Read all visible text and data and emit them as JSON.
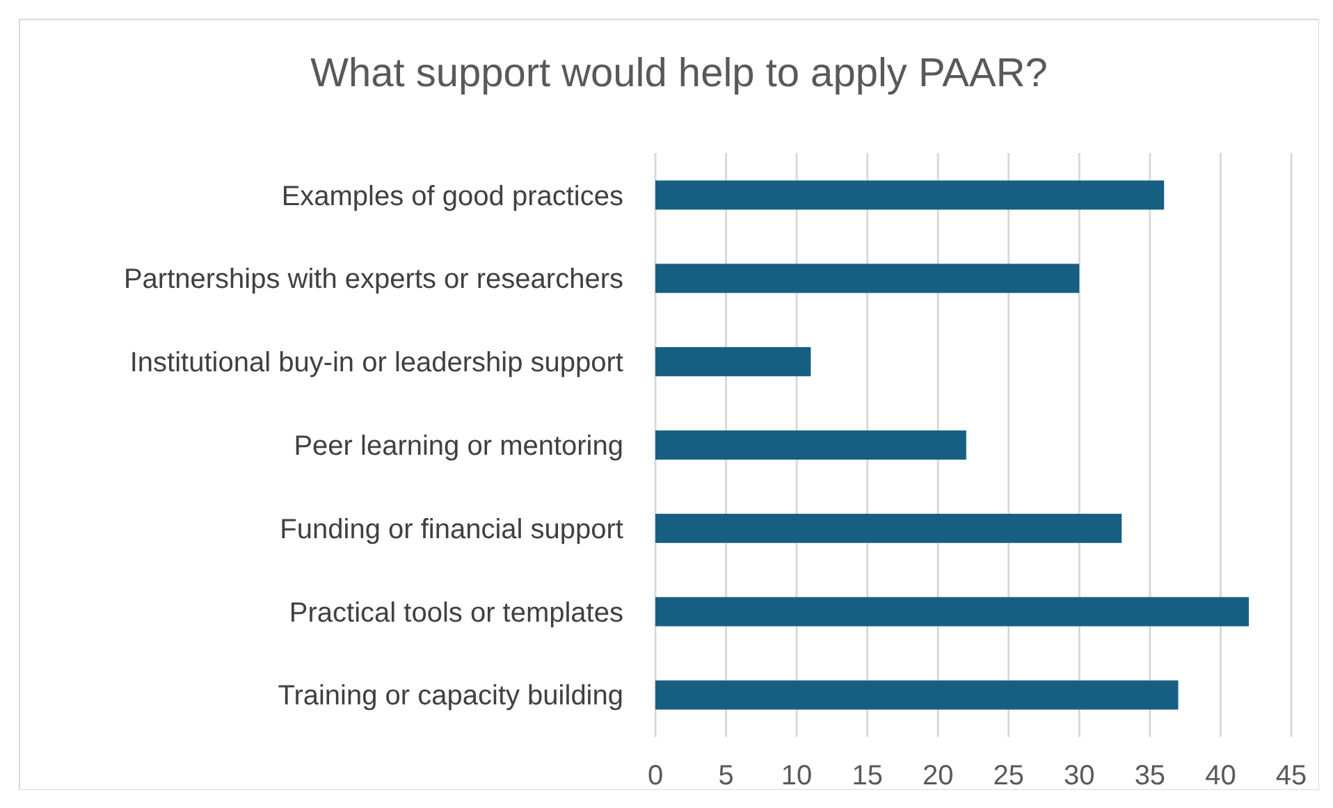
{
  "chart_data": {
    "type": "bar",
    "orientation": "horizontal",
    "title": "What support would help to apply PAAR?",
    "categories": [
      "Examples of good practices",
      "Partnerships with experts or researchers",
      "Institutional buy-in or leadership support",
      "Peer learning or mentoring",
      "Funding or financial support",
      "Practical tools or templates",
      "Training or capacity building"
    ],
    "values": [
      36,
      30,
      11,
      22,
      33,
      42,
      37
    ],
    "color": "#175f82",
    "xlim": [
      0,
      45
    ],
    "xticks": [
      0,
      5,
      10,
      15,
      20,
      25,
      30,
      35,
      40,
      45
    ],
    "grid": "x"
  }
}
